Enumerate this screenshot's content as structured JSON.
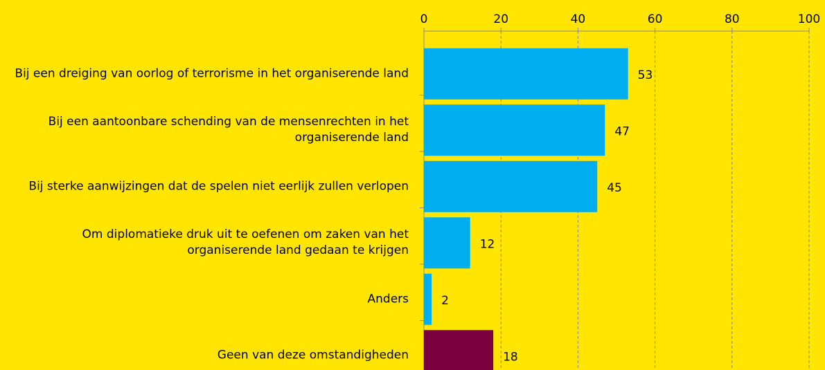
{
  "chart_data": {
    "type": "barh",
    "categories": [
      "Bij een dreiging van oorlog of terrorisme in het organiserende land",
      "Bij een aantoonbare schending van de mensenrechten in het organiserende land",
      "Bij sterke aanwijzingen dat de spelen niet eerlijk zullen verlopen",
      "Om diplomatieke druk uit te oefenen om zaken van het organiserende land gedaan te krijgen",
      "Anders",
      "Geen van deze omstandigheden"
    ],
    "values": [
      53,
      47,
      45,
      12,
      2,
      18
    ],
    "colors": [
      "#00aeef",
      "#00aeef",
      "#00aeef",
      "#00aeef",
      "#00aeef",
      "#7b003f"
    ],
    "xlim": [
      0,
      100
    ],
    "xticks": [
      0,
      20,
      40,
      60,
      80,
      100
    ],
    "grid": true
  }
}
